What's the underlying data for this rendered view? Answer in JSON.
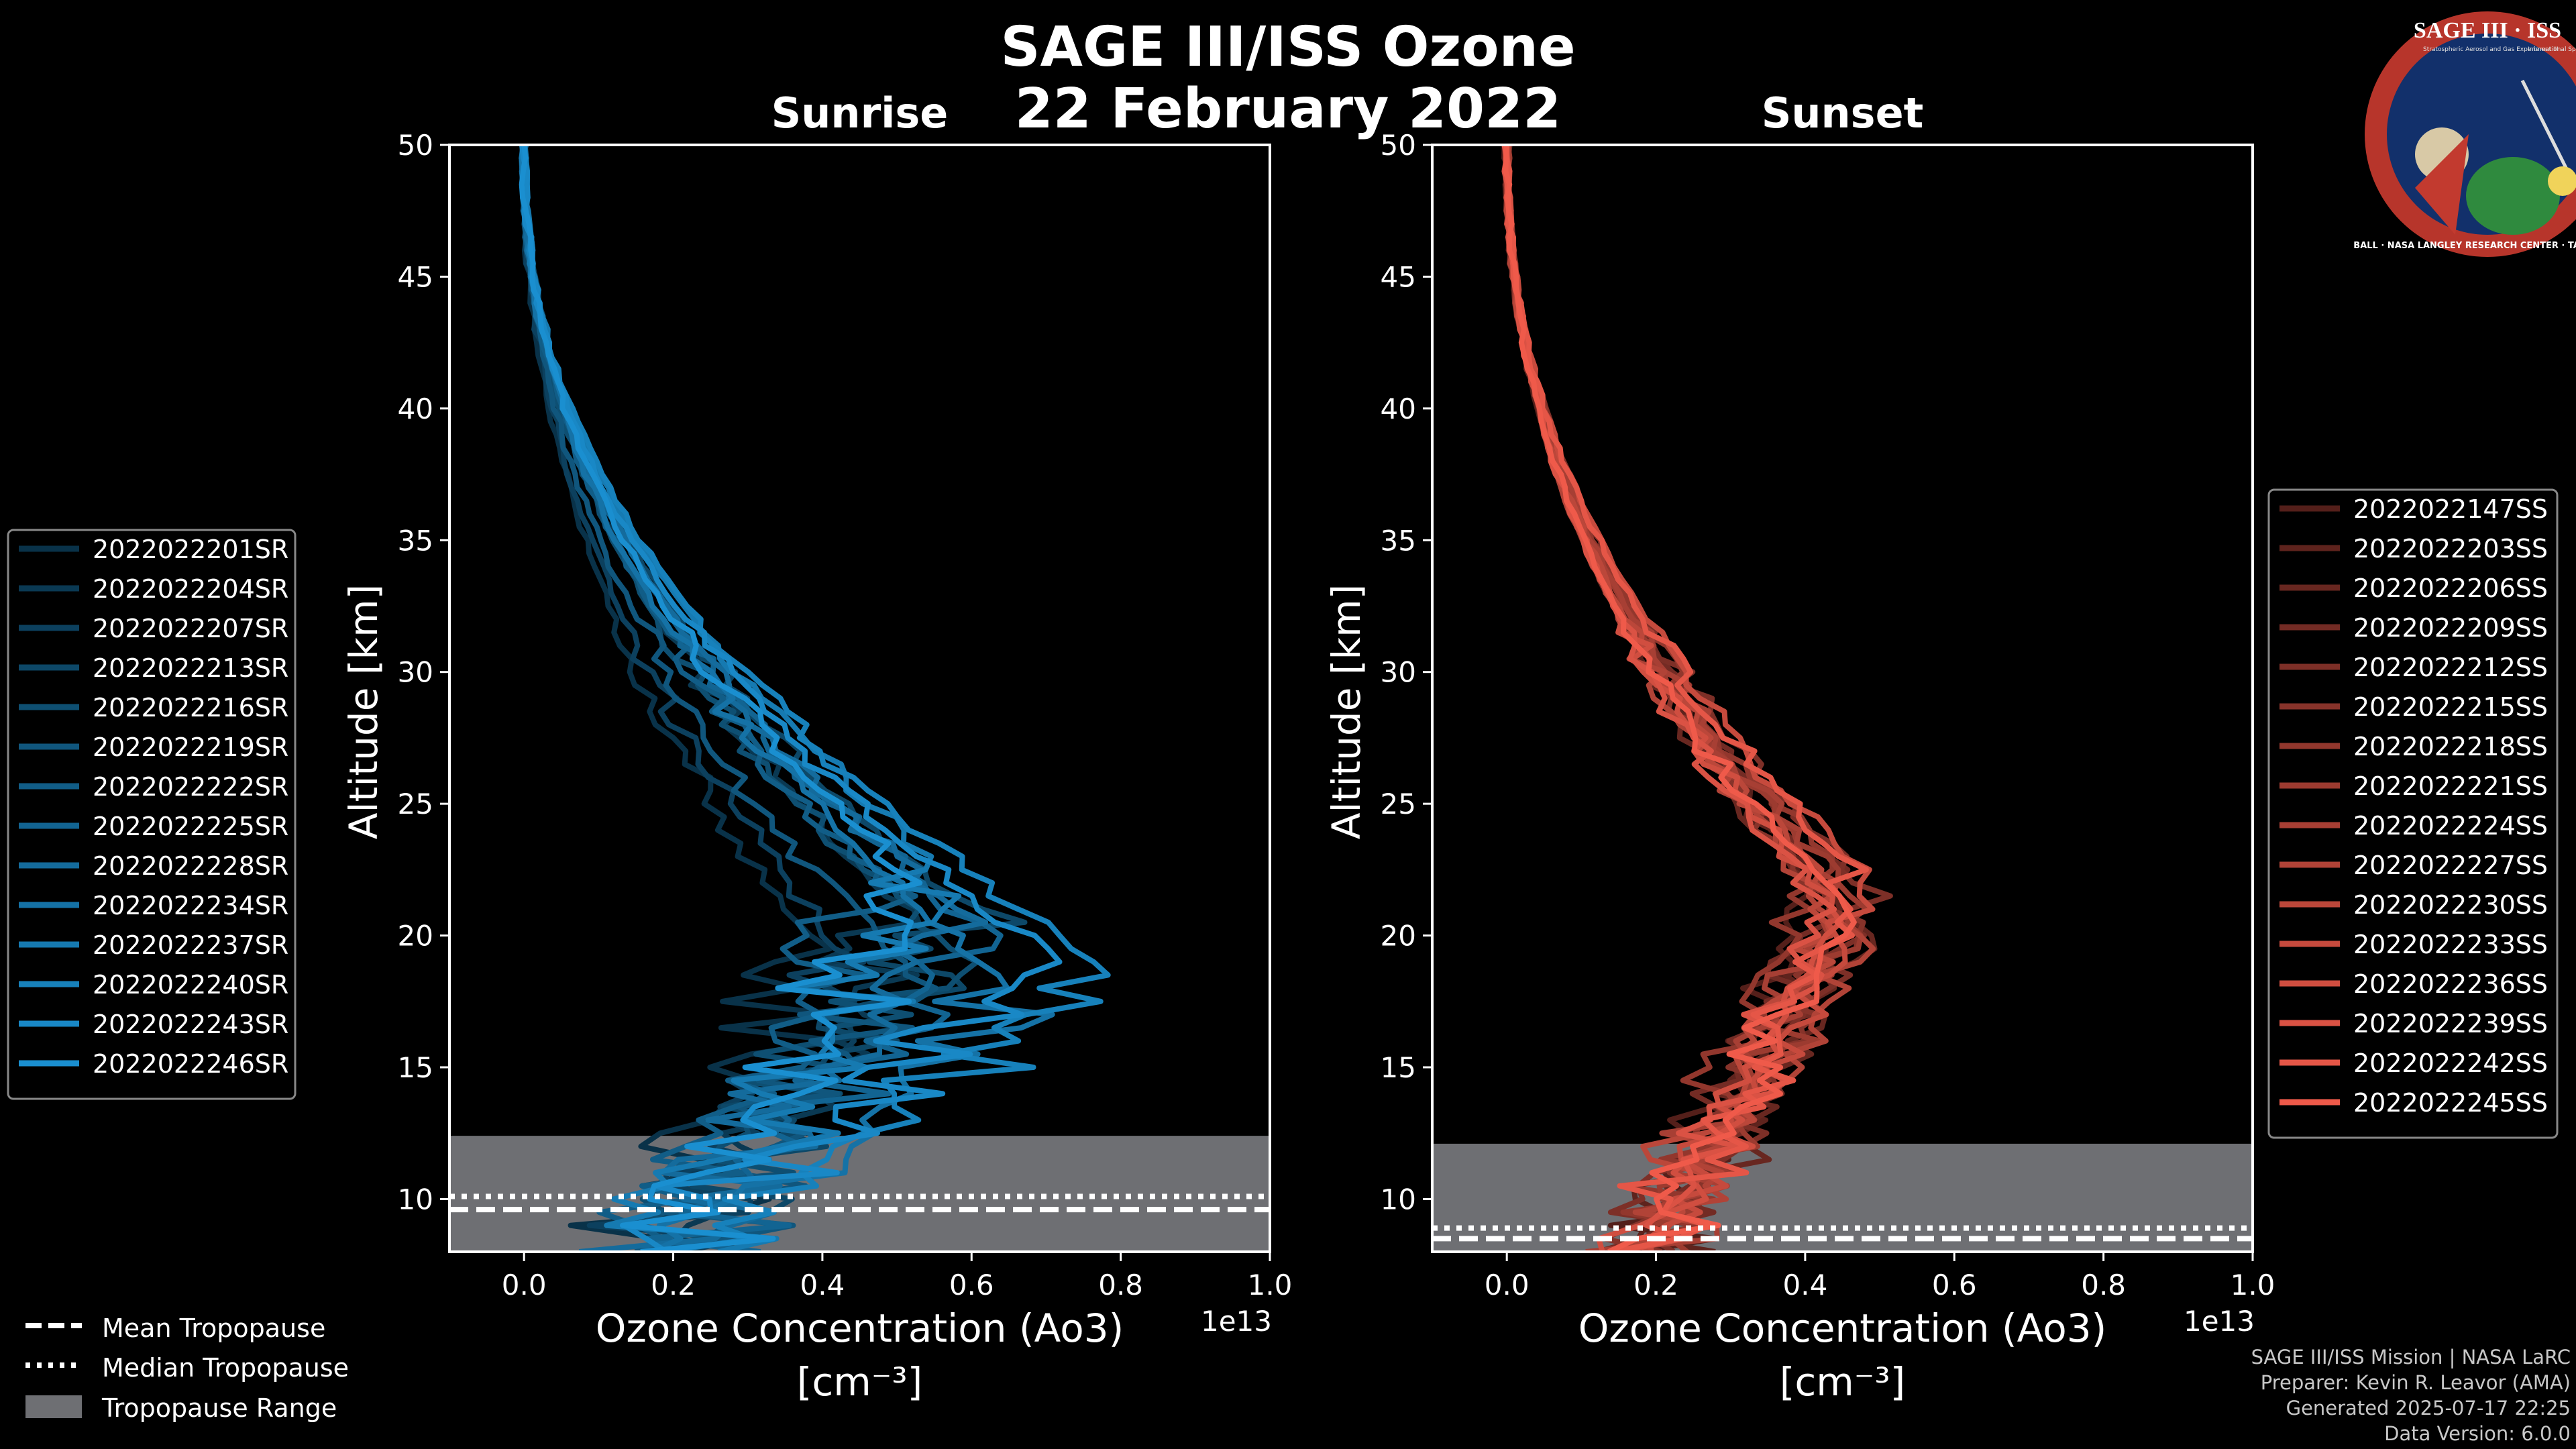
{
  "title_line1": "SAGE III/ISS Ozone",
  "title_line2": "22 February 2022",
  "badge": {
    "top_text": "SAGE III · ISS",
    "ring_text": "BALL · NASA LANGLEY RESEARCH CENTER · TAS-I · ESA",
    "small_text_left": "Stratospheric Aerosol and Gas Experiment III",
    "small_text_right": "International Space Station"
  },
  "credits": [
    "SAGE III/ISS Mission | NASA LaRC",
    "Preparer: Kevin R. Leavor (AMA)",
    "Generated 2025-07-17 22:25",
    "Data Version: 6.0.0"
  ],
  "tropopause_legend": {
    "mean": "Mean Tropopause",
    "median": "Median Tropopause",
    "range": "Tropopause Range"
  },
  "colors": {
    "sunrise": "#1a8fd0",
    "sunset": "#ef5a4a",
    "range_fill": "#6e6f73",
    "axes": "#ffffff"
  },
  "chart_data": [
    {
      "type": "line",
      "title": "Sunrise",
      "xlabel": "Ozone Concentration (Ao3)",
      "xunit": "[cm⁻³]",
      "offset_label": "1e13",
      "ylabel": "Altitude [km]",
      "xlim": [
        -0.1,
        1.0
      ],
      "ylim": [
        8,
        50
      ],
      "xticks": [
        "0.0",
        "0.2",
        "0.4",
        "0.6",
        "0.8",
        "1.0"
      ],
      "yticks": [
        "10",
        "15",
        "20",
        "25",
        "30",
        "35",
        "40",
        "45",
        "50"
      ],
      "peak_values": [
        0.38,
        0.52,
        0.45,
        0.6,
        0.55,
        0.5,
        0.48,
        0.62,
        0.58,
        0.66,
        0.55,
        0.8,
        0.72,
        0.53
      ],
      "peak_alts": [
        20,
        21,
        19,
        21,
        20,
        19,
        22,
        20,
        21,
        18,
        23,
        18.5,
        19,
        22
      ],
      "tropopause": {
        "mean": 9.6,
        "median": 10.1,
        "range": [
          8,
          12.4
        ]
      },
      "series": [
        {
          "name": "2022022201SR"
        },
        {
          "name": "2022022204SR"
        },
        {
          "name": "2022022207SR"
        },
        {
          "name": "2022022213SR"
        },
        {
          "name": "2022022216SR"
        },
        {
          "name": "2022022219SR"
        },
        {
          "name": "2022022222SR"
        },
        {
          "name": "2022022225SR"
        },
        {
          "name": "2022022228SR"
        },
        {
          "name": "2022022234SR"
        },
        {
          "name": "2022022237SR"
        },
        {
          "name": "2022022240SR"
        },
        {
          "name": "2022022243SR"
        },
        {
          "name": "2022022246SR"
        }
      ]
    },
    {
      "type": "line",
      "title": "Sunset",
      "xlabel": "Ozone Concentration (Ao3)",
      "xunit": "[cm⁻³]",
      "offset_label": "1e13",
      "ylabel": "Altitude [km]",
      "xlim": [
        -0.1,
        1.0
      ],
      "ylim": [
        8,
        50
      ],
      "xticks": [
        "0.0",
        "0.2",
        "0.4",
        "0.6",
        "0.8",
        "1.0"
      ],
      "yticks": [
        "10",
        "15",
        "20",
        "25",
        "30",
        "35",
        "40",
        "45",
        "50"
      ],
      "peak_values": [
        0.42,
        0.45,
        0.47,
        0.44,
        0.5,
        0.46,
        0.43,
        0.48,
        0.45,
        0.47,
        0.44,
        0.49,
        0.46,
        0.43,
        0.47,
        0.45
      ],
      "peak_alts": [
        22,
        21,
        20,
        22.5,
        21.5,
        20.5,
        23,
        21,
        22,
        20,
        21.5,
        22,
        20.5,
        21,
        22.5,
        21
      ],
      "tropopause": {
        "mean": 8.5,
        "median": 8.9,
        "range": [
          8,
          12.1
        ]
      },
      "series": [
        {
          "name": "2022022147SS"
        },
        {
          "name": "2022022203SS"
        },
        {
          "name": "2022022206SS"
        },
        {
          "name": "2022022209SS"
        },
        {
          "name": "2022022212SS"
        },
        {
          "name": "2022022215SS"
        },
        {
          "name": "2022022218SS"
        },
        {
          "name": "2022022221SS"
        },
        {
          "name": "2022022224SS"
        },
        {
          "name": "2022022227SS"
        },
        {
          "name": "2022022230SS"
        },
        {
          "name": "2022022233SS"
        },
        {
          "name": "2022022236SS"
        },
        {
          "name": "2022022239SS"
        },
        {
          "name": "2022022242SS"
        },
        {
          "name": "2022022245SS"
        }
      ]
    }
  ]
}
